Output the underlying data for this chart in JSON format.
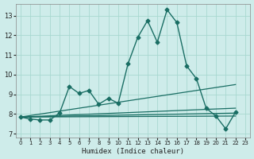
{
  "xlabel": "Humidex (Indice chaleur)",
  "background_color": "#ceecea",
  "grid_color": "#a8d8d0",
  "line_color": "#1a6e64",
  "xlim": [
    -0.5,
    23.5
  ],
  "ylim": [
    6.8,
    13.6
  ],
  "yticks": [
    7,
    8,
    9,
    10,
    11,
    12,
    13
  ],
  "xticks": [
    0,
    1,
    2,
    3,
    4,
    5,
    6,
    7,
    8,
    9,
    10,
    11,
    12,
    13,
    14,
    15,
    16,
    17,
    18,
    19,
    20,
    21,
    22,
    23
  ],
  "series": [
    {
      "x": [
        0,
        1,
        2,
        3,
        4,
        5,
        6,
        7,
        8,
        9,
        10,
        11,
        12,
        13,
        14,
        15,
        16,
        17,
        18,
        19,
        20,
        21,
        22
      ],
      "y": [
        7.85,
        7.75,
        7.7,
        7.7,
        8.05,
        9.4,
        9.05,
        9.2,
        8.5,
        8.8,
        8.55,
        10.55,
        11.9,
        12.75,
        11.65,
        13.3,
        12.65,
        10.45,
        9.8,
        8.3,
        7.9,
        7.25,
        8.1
      ],
      "color": "#1a6e64",
      "marker": "D",
      "markersize": 2.5,
      "linewidth": 1.0
    },
    {
      "x": [
        0,
        22
      ],
      "y": [
        7.85,
        9.5
      ],
      "color": "#1a6e64",
      "marker": null,
      "markersize": 0,
      "linewidth": 0.9
    },
    {
      "x": [
        0,
        22
      ],
      "y": [
        7.85,
        8.3
      ],
      "color": "#1a6e64",
      "marker": null,
      "markersize": 0,
      "linewidth": 0.9
    },
    {
      "x": [
        0,
        22
      ],
      "y": [
        7.85,
        8.05
      ],
      "color": "#1a6e64",
      "marker": null,
      "markersize": 0,
      "linewidth": 0.9
    },
    {
      "x": [
        0,
        22
      ],
      "y": [
        7.85,
        7.9
      ],
      "color": "#1a6e64",
      "marker": null,
      "markersize": 0,
      "linewidth": 0.9
    }
  ]
}
